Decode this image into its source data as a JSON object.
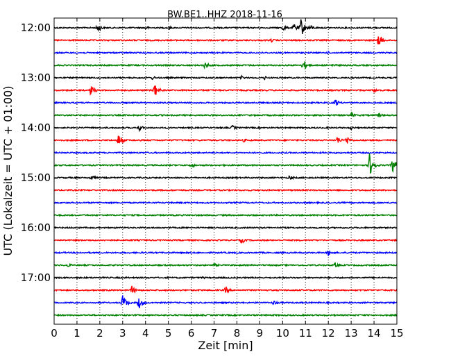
{
  "chart_data": {
    "type": "line",
    "title": "BW.BE1..HHZ 2018-11-16",
    "xlabel": "Zeit  [min]",
    "ylabel": "UTC (Lokalzeit = UTC + 01:00)",
    "xlim": [
      0,
      15
    ],
    "x_ticks": [
      "0",
      "1",
      "2",
      "3",
      "4",
      "5",
      "6",
      "7",
      "8",
      "9",
      "10",
      "11",
      "12",
      "13",
      "14",
      "15"
    ],
    "y_ticks": [
      "12:00",
      "13:00",
      "14:00",
      "15:00",
      "16:00",
      "17:00"
    ],
    "grid": "vertical dotted",
    "trace_colors": [
      "#000000",
      "#ff0000",
      "#0000ff",
      "#008000"
    ],
    "traces": [
      {
        "start": "12:00",
        "events": [
          {
            "t": 1.9,
            "a": 7
          },
          {
            "t": 4.0,
            "a": 3
          },
          {
            "t": 5.0,
            "a": 3
          },
          {
            "t": 10.0,
            "a": 5
          },
          {
            "t": 10.5,
            "a": 7
          },
          {
            "t": 10.8,
            "a": 14
          },
          {
            "t": 11.2,
            "a": 5
          }
        ]
      },
      {
        "start": "12:15",
        "events": [
          {
            "t": 9.5,
            "a": 3
          },
          {
            "t": 14.2,
            "a": 10
          }
        ]
      },
      {
        "start": "12:30",
        "events": [
          {
            "t": 12.0,
            "a": 2
          }
        ]
      },
      {
        "start": "12:45",
        "events": [
          {
            "t": 6.6,
            "a": 6
          },
          {
            "t": 10.9,
            "a": 9
          },
          {
            "t": 12.2,
            "a": 3
          }
        ]
      },
      {
        "start": "13:00",
        "events": [
          {
            "t": 4.3,
            "a": 3
          },
          {
            "t": 8.2,
            "a": 3
          },
          {
            "t": 9.2,
            "a": 3
          }
        ]
      },
      {
        "start": "13:15",
        "events": [
          {
            "t": 1.6,
            "a": 8
          },
          {
            "t": 4.4,
            "a": 10
          },
          {
            "t": 14.0,
            "a": 3
          }
        ]
      },
      {
        "start": "13:30",
        "events": [
          {
            "t": 12.3,
            "a": 6
          }
        ]
      },
      {
        "start": "13:45",
        "events": [
          {
            "t": 13.0,
            "a": 4
          },
          {
            "t": 14.2,
            "a": 4
          }
        ]
      },
      {
        "start": "14:00",
        "events": [
          {
            "t": 3.7,
            "a": 5
          },
          {
            "t": 7.8,
            "a": 4
          },
          {
            "t": 13.0,
            "a": 3
          }
        ]
      },
      {
        "start": "14:15",
        "events": [
          {
            "t": 2.8,
            "a": 10
          },
          {
            "t": 8.3,
            "a": 3
          },
          {
            "t": 12.4,
            "a": 6
          },
          {
            "t": 12.8,
            "a": 7
          }
        ]
      },
      {
        "start": "14:30",
        "events": []
      },
      {
        "start": "14:45",
        "events": [
          {
            "t": 6.0,
            "a": 4
          },
          {
            "t": 13.8,
            "a": 18
          },
          {
            "t": 14.8,
            "a": 12
          }
        ]
      },
      {
        "start": "15:00",
        "events": [
          {
            "t": 1.6,
            "a": 5
          },
          {
            "t": 10.3,
            "a": 4
          }
        ]
      },
      {
        "start": "15:15",
        "events": []
      },
      {
        "start": "15:30",
        "events": []
      },
      {
        "start": "15:45",
        "events": []
      },
      {
        "start": "16:00",
        "events": []
      },
      {
        "start": "16:15",
        "events": [
          {
            "t": 8.2,
            "a": 5
          }
        ]
      },
      {
        "start": "16:30",
        "events": [
          {
            "t": 12.0,
            "a": 5
          }
        ]
      },
      {
        "start": "16:45",
        "events": [
          {
            "t": 0.6,
            "a": 3
          },
          {
            "t": 7.0,
            "a": 3
          },
          {
            "t": 12.3,
            "a": 4
          }
        ]
      },
      {
        "start": "17:00",
        "events": [
          {
            "t": 6.5,
            "a": 2
          }
        ]
      },
      {
        "start": "17:15",
        "events": [
          {
            "t": 3.4,
            "a": 7
          },
          {
            "t": 7.5,
            "a": 5
          }
        ]
      },
      {
        "start": "17:30",
        "events": [
          {
            "t": 3.0,
            "a": 12
          },
          {
            "t": 3.7,
            "a": 10
          },
          {
            "t": 9.6,
            "a": 4
          }
        ]
      },
      {
        "start": "17:45",
        "events": []
      }
    ]
  }
}
